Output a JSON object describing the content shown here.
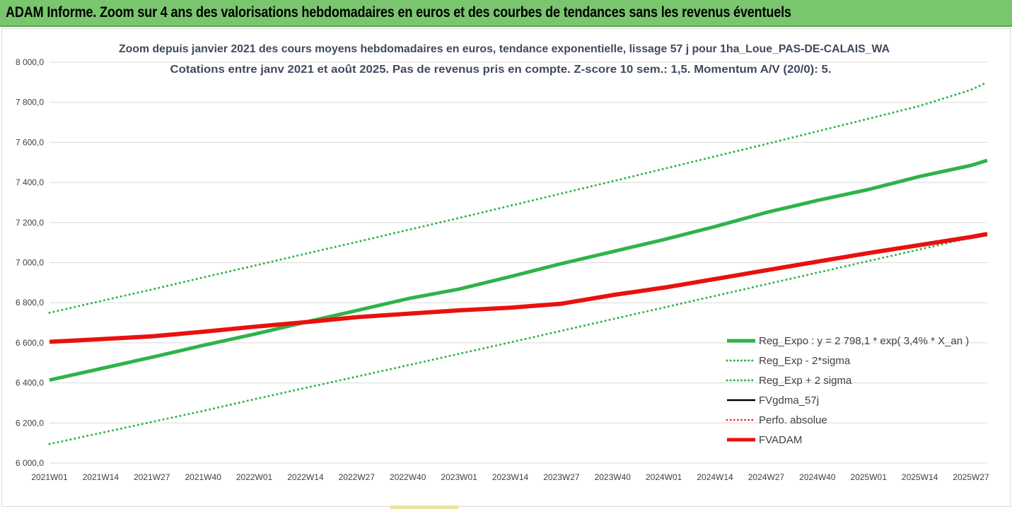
{
  "banner": {
    "title": "ADAM Informe. Zoom sur 4 ans des valorisations hebdomadaires en euros et des courbes de tendances sans les revenus éventuels"
  },
  "chart_data": {
    "type": "line",
    "title_line1": "Zoom depuis janvier 2021 des cours moyens hebdomadaires en euros, tendance exponentielle, lissage 57 j pour 1ha_Loue_PAS-DE-CALAIS_WA",
    "title_line2": "Cotations entre janv 2021 et août 2025.  Pas de revenus pris en compte. Z-score 10 sem.: 1,5. Momentum A/V (20/0): 5.",
    "ylim": [
      6000,
      8000
    ],
    "y_ticks": [
      "6 000,0",
      "6 200,0",
      "6 400,0",
      "6 600,0",
      "6 800,0",
      "7 000,0",
      "7 200,0",
      "7 400,0",
      "7 600,0",
      "7 800,0",
      "8 000,0"
    ],
    "y_tick_values": [
      6000,
      6200,
      6400,
      6600,
      6800,
      7000,
      7200,
      7400,
      7600,
      7800,
      8000
    ],
    "x_ticks": [
      "2021W01",
      "2021W14",
      "2021W27",
      "2021W40",
      "2022W01",
      "2022W14",
      "2022W27",
      "2022W40",
      "2023W01",
      "2023W14",
      "2023W27",
      "2023W40",
      "2024W01",
      "2024W14",
      "2024W27",
      "2024W40",
      "2025W01",
      "2025W14",
      "2025W27"
    ],
    "grid": "horizontal",
    "legend_placement": "bottom-right",
    "series": [
      {
        "name": "Reg_Expo : y = 2 798,1 * exp( 3,4% *  X_an )",
        "style": "solid",
        "color": "#2eb34a",
        "width": 5,
        "x": [
          "2021W01",
          "2021W14",
          "2021W27",
          "2021W40",
          "2022W01",
          "2022W14",
          "2022W27",
          "2022W40",
          "2023W01",
          "2023W14",
          "2023W27",
          "2023W40",
          "2024W01",
          "2024W14",
          "2024W27",
          "2024W40",
          "2025W01",
          "2025W14",
          "2025W27",
          "2025W31"
        ],
        "values": [
          6414,
          6471,
          6528,
          6587,
          6643,
          6703,
          6761,
          6820,
          6868,
          6930,
          6995,
          7055,
          7115,
          7180,
          7250,
          7310,
          7365,
          7430,
          7485,
          7510
        ]
      },
      {
        "name": "Reg_Exp - 2*sigma",
        "style": "dotted",
        "color": "#2eb34a",
        "width": 3,
        "x": [
          "2021W01",
          "2021W14",
          "2021W27",
          "2021W40",
          "2022W01",
          "2022W14",
          "2022W27",
          "2022W40",
          "2023W01",
          "2023W14",
          "2023W27",
          "2023W40",
          "2024W01",
          "2024W14",
          "2024W27",
          "2024W40",
          "2025W01",
          "2025W14",
          "2025W27",
          "2025W31"
        ],
        "values": [
          6095,
          6150,
          6205,
          6260,
          6318,
          6375,
          6431,
          6488,
          6545,
          6602,
          6660,
          6718,
          6776,
          6834,
          6892,
          6950,
          7008,
          7066,
          7124,
          7140
        ]
      },
      {
        "name": "Reg_Exp + 2 sigma",
        "style": "dotted",
        "color": "#2eb34a",
        "width": 3,
        "x": [
          "2021W01",
          "2021W14",
          "2021W27",
          "2021W40",
          "2022W01",
          "2022W14",
          "2022W27",
          "2022W40",
          "2023W01",
          "2023W14",
          "2023W27",
          "2023W40",
          "2024W01",
          "2024W14",
          "2024W27",
          "2024W40",
          "2025W01",
          "2025W14",
          "2025W27",
          "2025W31"
        ],
        "values": [
          6750,
          6808,
          6866,
          6926,
          6985,
          7044,
          7103,
          7163,
          7223,
          7284,
          7345,
          7406,
          7468,
          7530,
          7592,
          7655,
          7718,
          7782,
          7862,
          7900
        ]
      },
      {
        "name": "FVgdma_57j",
        "style": "solid",
        "color": "#000000",
        "width": 2.5,
        "x": [
          "2021W01",
          "2021W14",
          "2021W27",
          "2021W40",
          "2022W01",
          "2022W14",
          "2022W27",
          "2022W40",
          "2023W01",
          "2023W14",
          "2023W27",
          "2023W40",
          "2024W01",
          "2024W14",
          "2024W27",
          "2024W40",
          "2025W01",
          "2025W14",
          "2025W27",
          "2025W31"
        ],
        "values": [
          6605,
          6618,
          6632,
          6655,
          6680,
          6703,
          6728,
          6745,
          6762,
          6775,
          6800,
          6838,
          6875,
          6918,
          6962,
          7005,
          7048,
          7088,
          7122,
          7137
        ]
      },
      {
        "name": "Perfo. absolue",
        "style": "dotted",
        "color": "#e01010",
        "width": 2.5,
        "x": [],
        "values": []
      },
      {
        "name": "FVADAM",
        "style": "solid",
        "color": "#e8110f",
        "width": 6,
        "x": [
          "2021W01",
          "2021W14",
          "2021W27",
          "2021W40",
          "2022W01",
          "2022W14",
          "2022W27",
          "2022W40",
          "2023W01",
          "2023W14",
          "2023W27",
          "2023W40",
          "2024W01",
          "2024W14",
          "2024W27",
          "2024W40",
          "2025W01",
          "2025W14",
          "2025W27",
          "2025W31"
        ],
        "values": [
          6605,
          6618,
          6632,
          6655,
          6680,
          6703,
          6728,
          6745,
          6762,
          6775,
          6795,
          6838,
          6875,
          6918,
          6962,
          7005,
          7048,
          7088,
          7128,
          7143
        ]
      }
    ]
  }
}
